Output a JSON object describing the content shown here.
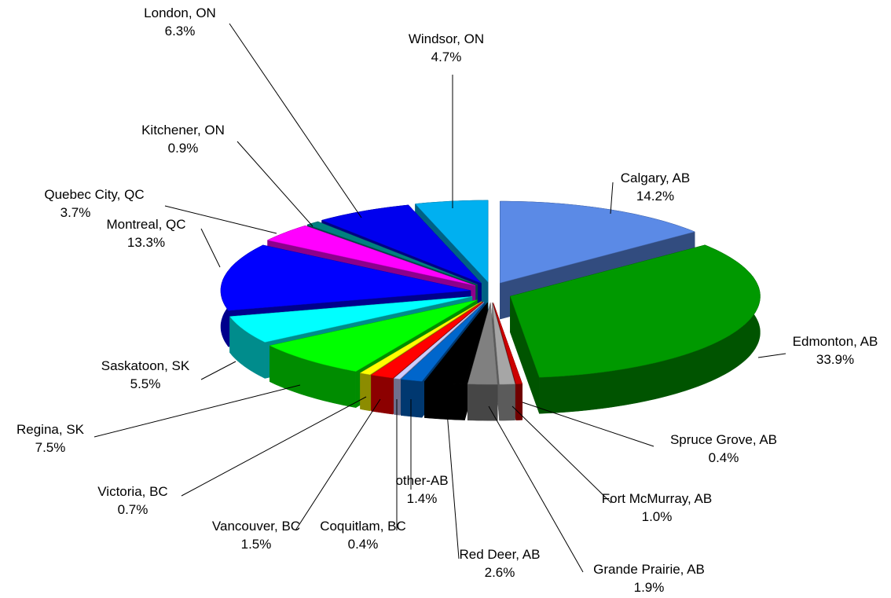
{
  "chart_data": {
    "type": "pie",
    "categories": [
      "Calgary, AB",
      "Edmonton, AB",
      "Spruce Grove, AB",
      "Fort McMurray, AB",
      "Grande Prairie, AB",
      "Red Deer, AB",
      "other-AB",
      "Coquitlam, BC",
      "Vancouver, BC",
      "Victoria, BC",
      "Regina, SK",
      "Saskatoon, SK",
      "Montreal, QC",
      "Quebec City, QC",
      "Kitchener, ON",
      "London, ON",
      "Windsor, ON"
    ],
    "values": [
      14.2,
      33.9,
      0.4,
      1.0,
      1.9,
      2.6,
      1.4,
      0.4,
      1.5,
      0.7,
      7.5,
      5.5,
      13.3,
      3.7,
      0.9,
      6.3,
      4.7
    ],
    "value_labels": [
      "14.2%",
      "33.9%",
      "0.4%",
      "1.0%",
      "1.9%",
      "2.6%",
      "1.4%",
      "0.4%",
      "1.5%",
      "0.7%",
      "7.5%",
      "5.5%",
      "13.3%",
      "3.7%",
      "0.9%",
      "6.3%",
      "4.7%"
    ],
    "colors": [
      "#5b8ae6",
      "#009900",
      "#cc0000",
      "#a6a6a6",
      "#808080",
      "#000000",
      "#0066cc",
      "#ccccff",
      "#ff0000",
      "#ffff00",
      "#00ff00",
      "#00ffff",
      "#0000ff",
      "#ff00ff",
      "#008080",
      "#0000ee",
      "#00b0f0"
    ]
  }
}
